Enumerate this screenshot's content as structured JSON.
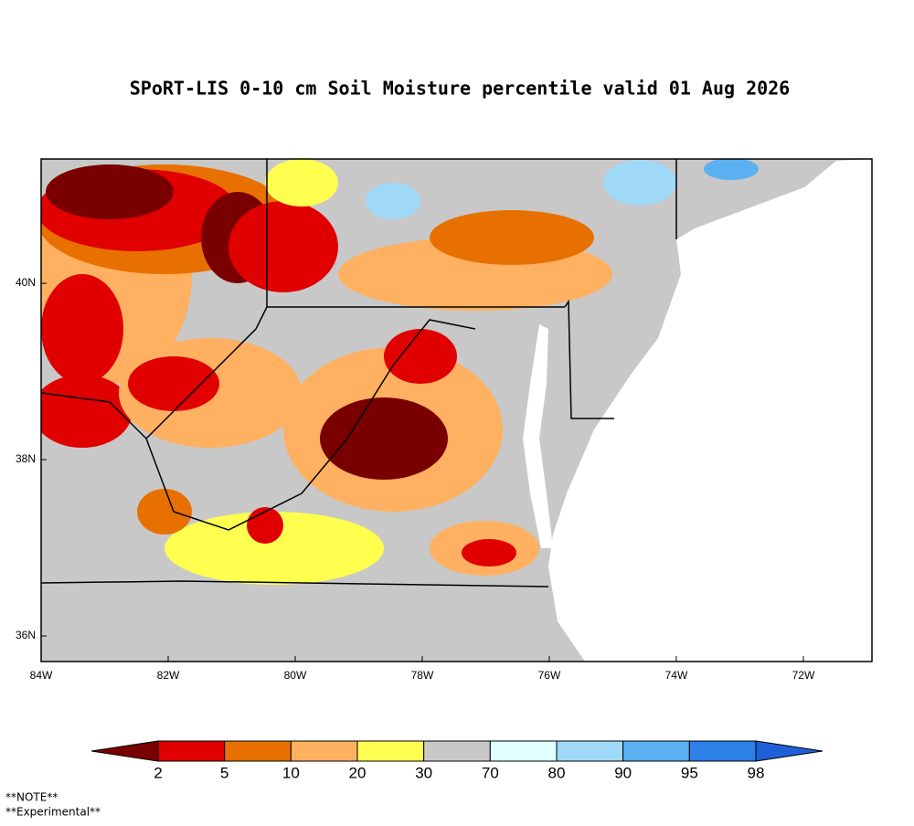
{
  "chart_data": {
    "type": "map",
    "title": "SPoRT-LIS 0-10 cm Soil Moisture percentile valid 01 Aug 2026",
    "xlim": [
      -84,
      -70.92
    ],
    "ylim": [
      35.71,
      41.41
    ],
    "xticks": [
      {
        "value": -84,
        "label": "84W"
      },
      {
        "value": -82,
        "label": "82W"
      },
      {
        "value": -80,
        "label": "80W"
      },
      {
        "value": -78,
        "label": "78W"
      },
      {
        "value": -76,
        "label": "76W"
      },
      {
        "value": -74,
        "label": "74W"
      },
      {
        "value": -72,
        "label": "72W"
      }
    ],
    "yticks": [
      {
        "value": 36,
        "label": "36N"
      },
      {
        "value": 38,
        "label": "38N"
      },
      {
        "value": 40,
        "label": "40N"
      }
    ],
    "colorbar": {
      "bounds": [
        2,
        5,
        10,
        20,
        30,
        70,
        80,
        90,
        95,
        98
      ],
      "colors": [
        "#7a0000",
        "#e00000",
        "#e87000",
        "#ffb060",
        "#ffff50",
        "#c8c8c8",
        "#e0ffff",
        "#a0d8f8",
        "#5ab0f0",
        "#2c80e8",
        "#1e60d8"
      ]
    },
    "notes": [
      "**NOTE**",
      "**Experimental**"
    ]
  }
}
